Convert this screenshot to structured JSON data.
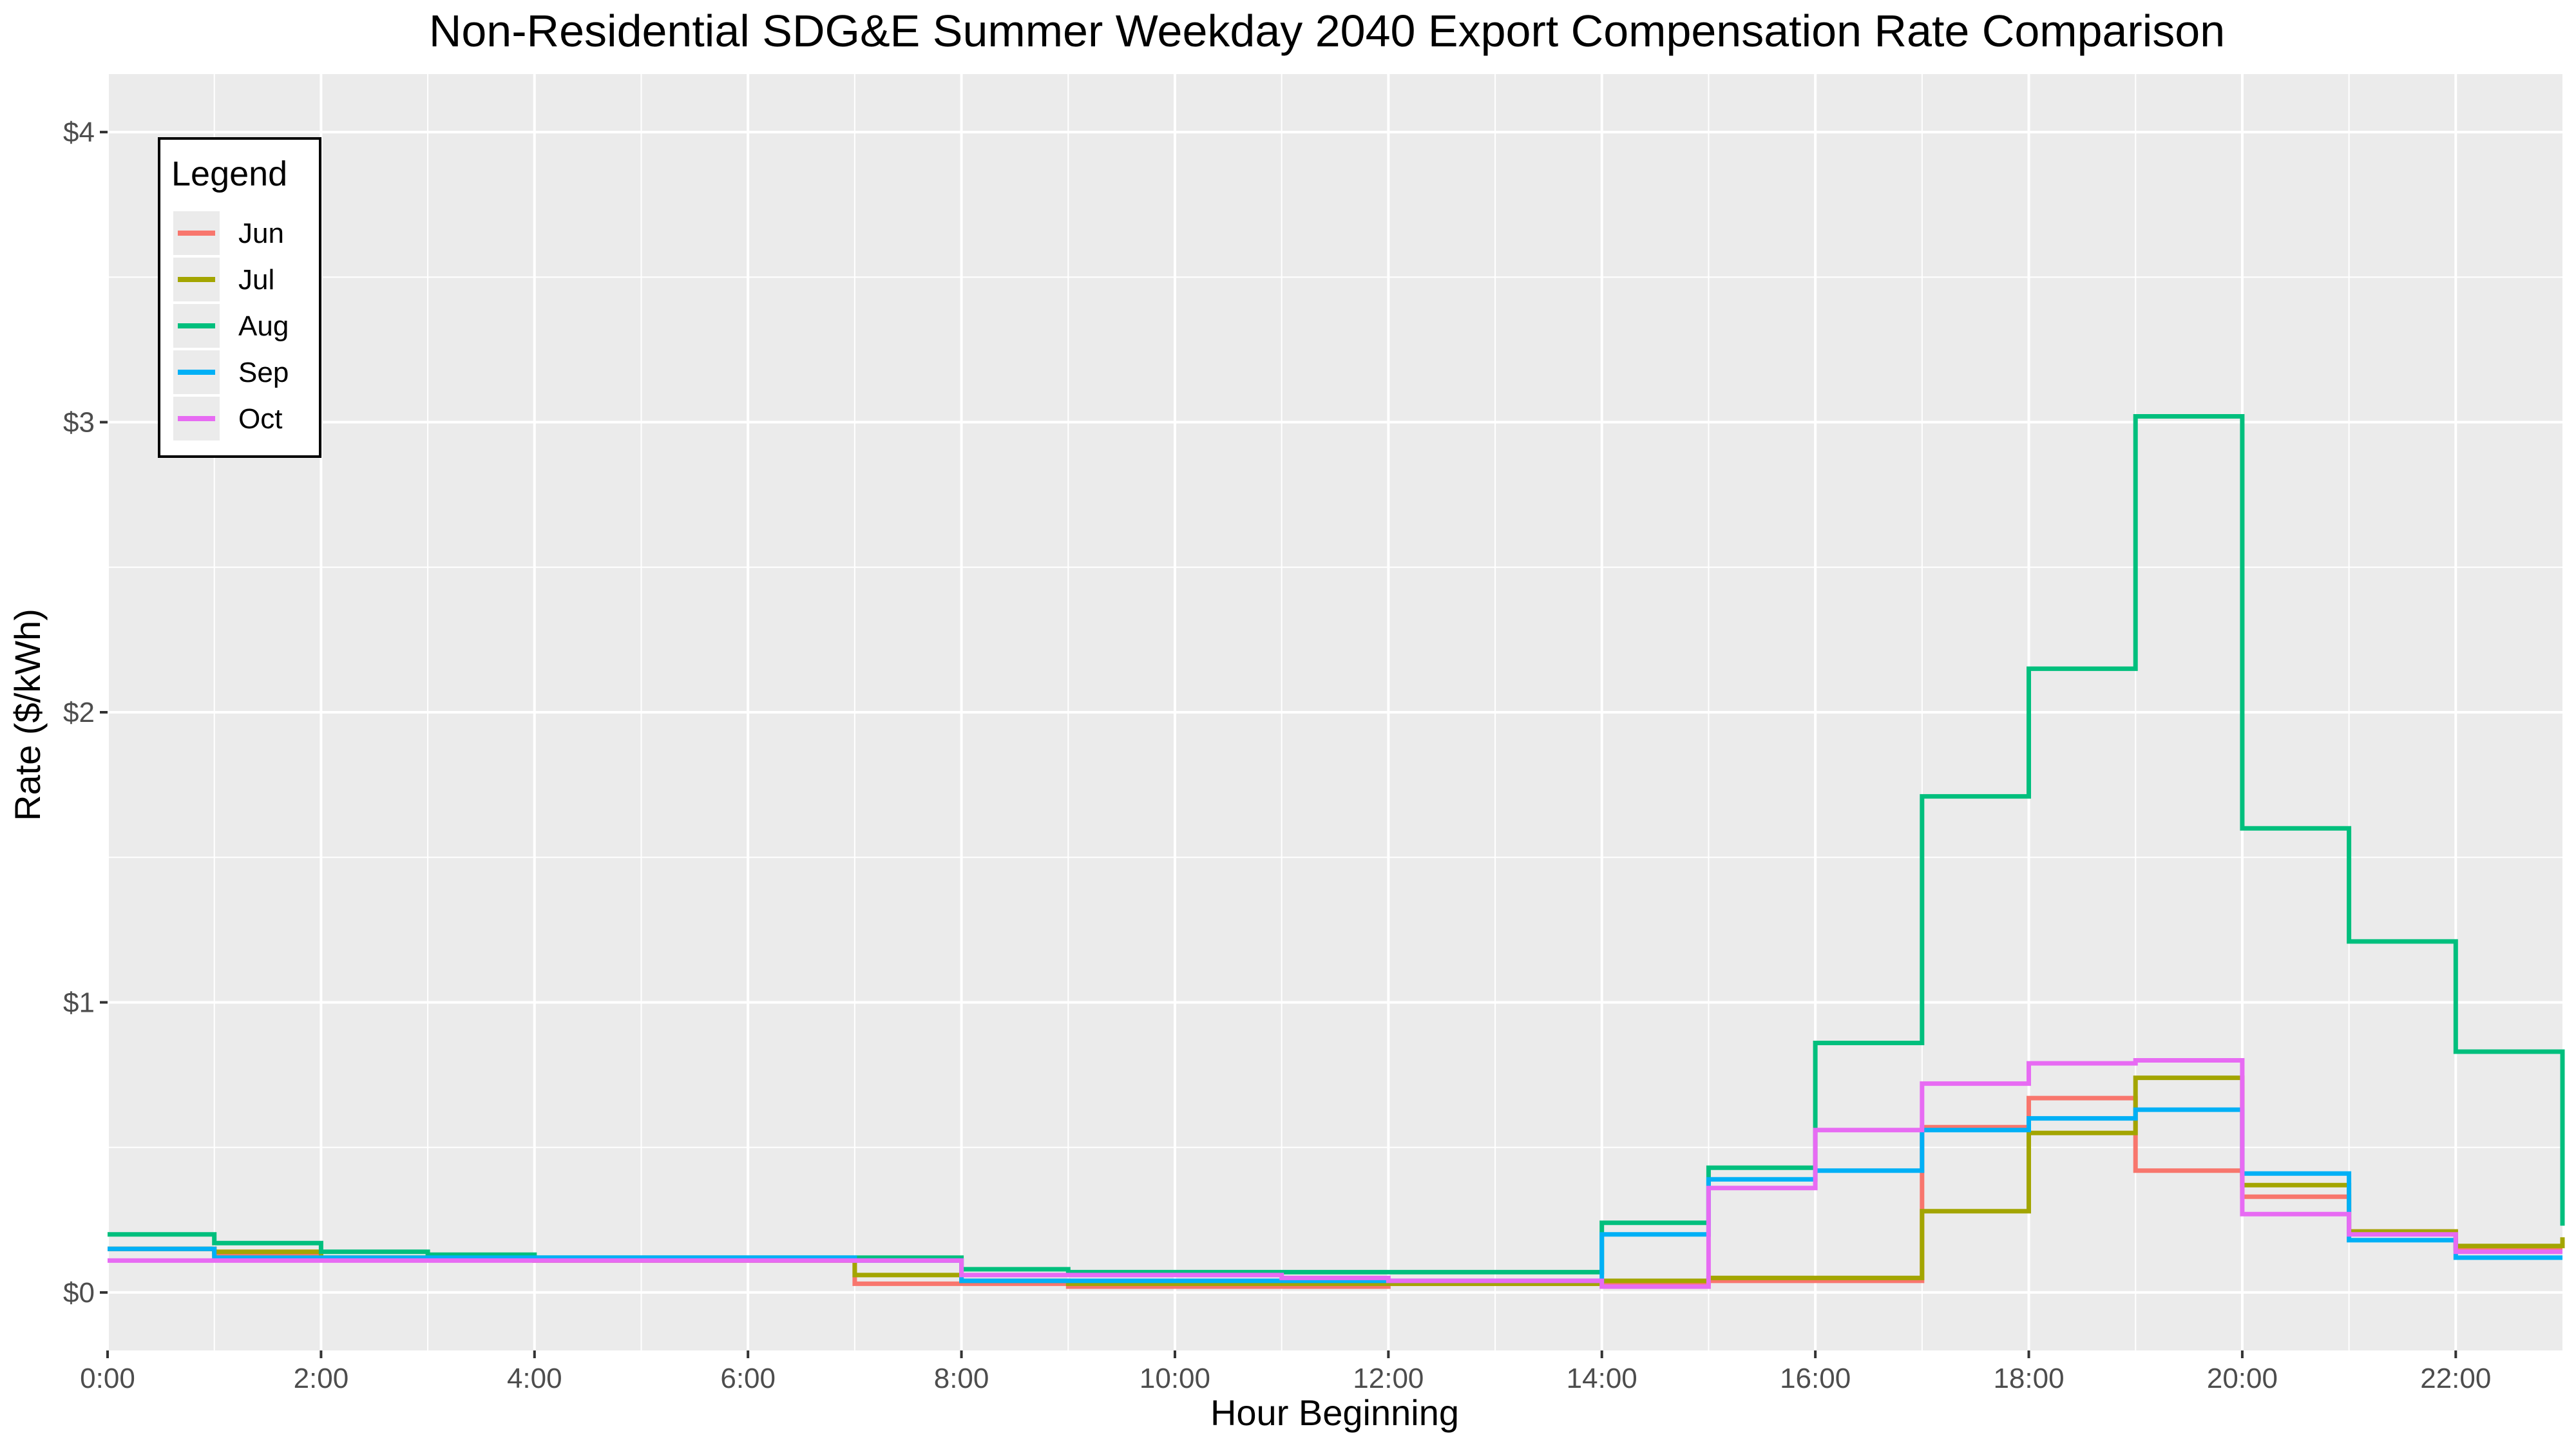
{
  "chart_data": {
    "type": "line",
    "step": true,
    "title": "Non-Residential SDG&E Summer Weekday 2040 Export Compensation Rate Comparison",
    "xlabel": "Hour Beginning",
    "ylabel": "Rate ($/kWh)",
    "xlim": [
      0,
      23
    ],
    "ylim": [
      -0.2,
      4.2
    ],
    "x_ticks": [
      0,
      2,
      4,
      6,
      8,
      10,
      12,
      14,
      16,
      18,
      20,
      22
    ],
    "x_tick_labels": [
      "0:00",
      "2:00",
      "4:00",
      "6:00",
      "8:00",
      "10:00",
      "12:00",
      "14:00",
      "16:00",
      "18:00",
      "20:00",
      "22:00"
    ],
    "y_ticks": [
      0,
      1,
      2,
      3,
      4
    ],
    "y_tick_labels": [
      "$0",
      "$1",
      "$2",
      "$3",
      "$4"
    ],
    "grid": true,
    "legend_position": "top-left",
    "legend_title": "Legend",
    "x": [
      0,
      1,
      2,
      3,
      4,
      5,
      6,
      7,
      8,
      9,
      10,
      11,
      12,
      13,
      14,
      15,
      16,
      17,
      18,
      19,
      20,
      21,
      22,
      23
    ],
    "series": [
      {
        "name": "Jun",
        "color": "#F8766D",
        "values": [
          0.15,
          0.13,
          0.12,
          0.12,
          0.11,
          0.11,
          0.11,
          0.03,
          0.03,
          0.02,
          0.02,
          0.02,
          0.03,
          0.03,
          0.03,
          0.04,
          0.04,
          0.57,
          0.67,
          0.42,
          0.33,
          0.21,
          0.15,
          0.15
        ]
      },
      {
        "name": "Jul",
        "color": "#A3A500",
        "values": [
          0.15,
          0.14,
          0.12,
          0.12,
          0.11,
          0.11,
          0.11,
          0.06,
          0.04,
          0.03,
          0.03,
          0.03,
          0.03,
          0.03,
          0.04,
          0.05,
          0.05,
          0.28,
          0.55,
          0.74,
          0.37,
          0.21,
          0.16,
          0.19
        ]
      },
      {
        "name": "Aug",
        "color": "#00BF7D",
        "values": [
          0.2,
          0.17,
          0.14,
          0.13,
          0.12,
          0.12,
          0.12,
          0.12,
          0.08,
          0.07,
          0.07,
          0.07,
          0.07,
          0.07,
          0.24,
          0.43,
          0.86,
          1.71,
          2.15,
          3.02,
          1.6,
          1.21,
          0.83,
          0.23
        ]
      },
      {
        "name": "Sep",
        "color": "#00B0F6",
        "values": [
          0.15,
          0.12,
          0.12,
          0.12,
          0.12,
          0.12,
          0.12,
          0.11,
          0.04,
          0.04,
          0.04,
          0.04,
          0.04,
          0.04,
          0.2,
          0.39,
          0.42,
          0.56,
          0.6,
          0.63,
          0.41,
          0.18,
          0.12,
          0.12
        ]
      },
      {
        "name": "Oct",
        "color": "#E76BF3",
        "values": [
          0.11,
          0.11,
          0.11,
          0.11,
          0.11,
          0.11,
          0.11,
          0.11,
          0.06,
          0.06,
          0.06,
          0.05,
          0.04,
          0.04,
          0.02,
          0.36,
          0.56,
          0.72,
          0.79,
          0.8,
          0.27,
          0.2,
          0.14,
          0.14
        ]
      }
    ]
  }
}
